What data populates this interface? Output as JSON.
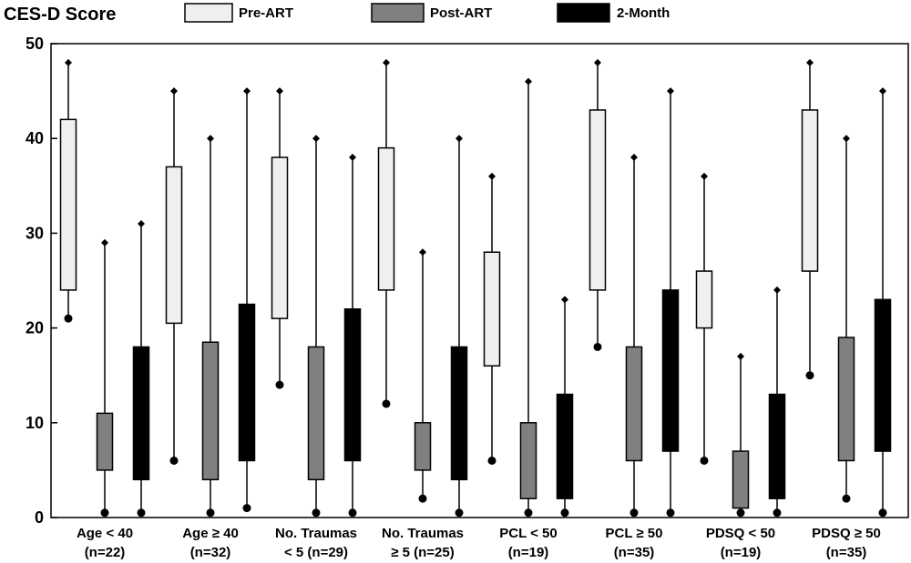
{
  "chart_data": {
    "type": "boxplot",
    "title": "CES-D Score",
    "ylim": [
      0,
      50
    ],
    "yticks": [
      0,
      10,
      20,
      30,
      40,
      50
    ],
    "grid": false,
    "legend_position": "top",
    "series": [
      {
        "name": "Pre-ART",
        "color": "#efefef"
      },
      {
        "name": "Post-ART",
        "color": "#808080"
      },
      {
        "name": "2-Month",
        "color": "#000000"
      }
    ],
    "groups": [
      {
        "label_line1": "Age < 40",
        "label_line2": "(n=22)",
        "boxes": [
          {
            "series": "Pre-ART",
            "min": 21,
            "q1": 24,
            "q3": 42,
            "max": 48
          },
          {
            "series": "Post-ART",
            "min": 0.5,
            "q1": 5,
            "q3": 11,
            "max": 29
          },
          {
            "series": "2-Month",
            "min": 0.5,
            "q1": 4,
            "q3": 18,
            "max": 31
          }
        ]
      },
      {
        "label_line1": "Age ≥ 40",
        "label_line2": "(n=32)",
        "boxes": [
          {
            "series": "Pre-ART",
            "min": 6,
            "q1": 20.5,
            "q3": 37,
            "max": 45
          },
          {
            "series": "Post-ART",
            "min": 0.5,
            "q1": 4,
            "q3": 18.5,
            "max": 40
          },
          {
            "series": "2-Month",
            "min": 1,
            "q1": 6,
            "q3": 22.5,
            "max": 45
          }
        ]
      },
      {
        "label_line1": "No. Traumas",
        "label_line2": "< 5 (n=29)",
        "boxes": [
          {
            "series": "Pre-ART",
            "min": 14,
            "q1": 21,
            "q3": 38,
            "max": 45
          },
          {
            "series": "Post-ART",
            "min": 0.5,
            "q1": 4,
            "q3": 18,
            "max": 40
          },
          {
            "series": "2-Month",
            "min": 0.5,
            "q1": 6,
            "q3": 22,
            "max": 38
          }
        ]
      },
      {
        "label_line1": "No. Traumas",
        "label_line2": "≥ 5 (n=25)",
        "boxes": [
          {
            "series": "Pre-ART",
            "min": 12,
            "q1": 24,
            "q3": 39,
            "max": 48
          },
          {
            "series": "Post-ART",
            "min": 2,
            "q1": 5,
            "q3": 10,
            "max": 28
          },
          {
            "series": "2-Month",
            "min": 0.5,
            "q1": 4,
            "q3": 18,
            "max": 40
          }
        ]
      },
      {
        "label_line1": "PCL < 50",
        "label_line2": "(n=19)",
        "boxes": [
          {
            "series": "Pre-ART",
            "min": 6,
            "q1": 16,
            "q3": 28,
            "max": 36
          },
          {
            "series": "Post-ART",
            "min": 0.5,
            "q1": 2,
            "q3": 10,
            "max": 46
          },
          {
            "series": "2-Month",
            "min": 0.5,
            "q1": 2,
            "q3": 13,
            "max": 23
          }
        ]
      },
      {
        "label_line1": "PCL ≥ 50",
        "label_line2": "(n=35)",
        "boxes": [
          {
            "series": "Pre-ART",
            "min": 18,
            "q1": 24,
            "q3": 43,
            "max": 48
          },
          {
            "series": "Post-ART",
            "min": 0.5,
            "q1": 6,
            "q3": 18,
            "max": 38
          },
          {
            "series": "2-Month",
            "min": 0.5,
            "q1": 7,
            "q3": 24,
            "max": 45
          }
        ]
      },
      {
        "label_line1": "PDSQ < 50",
        "label_line2": "(n=19)",
        "boxes": [
          {
            "series": "Pre-ART",
            "min": 6,
            "q1": 20,
            "q3": 26,
            "max": 36
          },
          {
            "series": "Post-ART",
            "min": 0.5,
            "q1": 1,
            "q3": 7,
            "max": 17
          },
          {
            "series": "2-Month",
            "min": 0.5,
            "q1": 2,
            "q3": 13,
            "max": 24
          }
        ]
      },
      {
        "label_line1": "PDSQ ≥ 50",
        "label_line2": "(n=35)",
        "boxes": [
          {
            "series": "Pre-ART",
            "min": 15,
            "q1": 26,
            "q3": 43,
            "max": 48
          },
          {
            "series": "Post-ART",
            "min": 2,
            "q1": 6,
            "q3": 19,
            "max": 40
          },
          {
            "series": "2-Month",
            "min": 0.5,
            "q1": 7,
            "q3": 23,
            "max": 45
          }
        ]
      }
    ]
  }
}
